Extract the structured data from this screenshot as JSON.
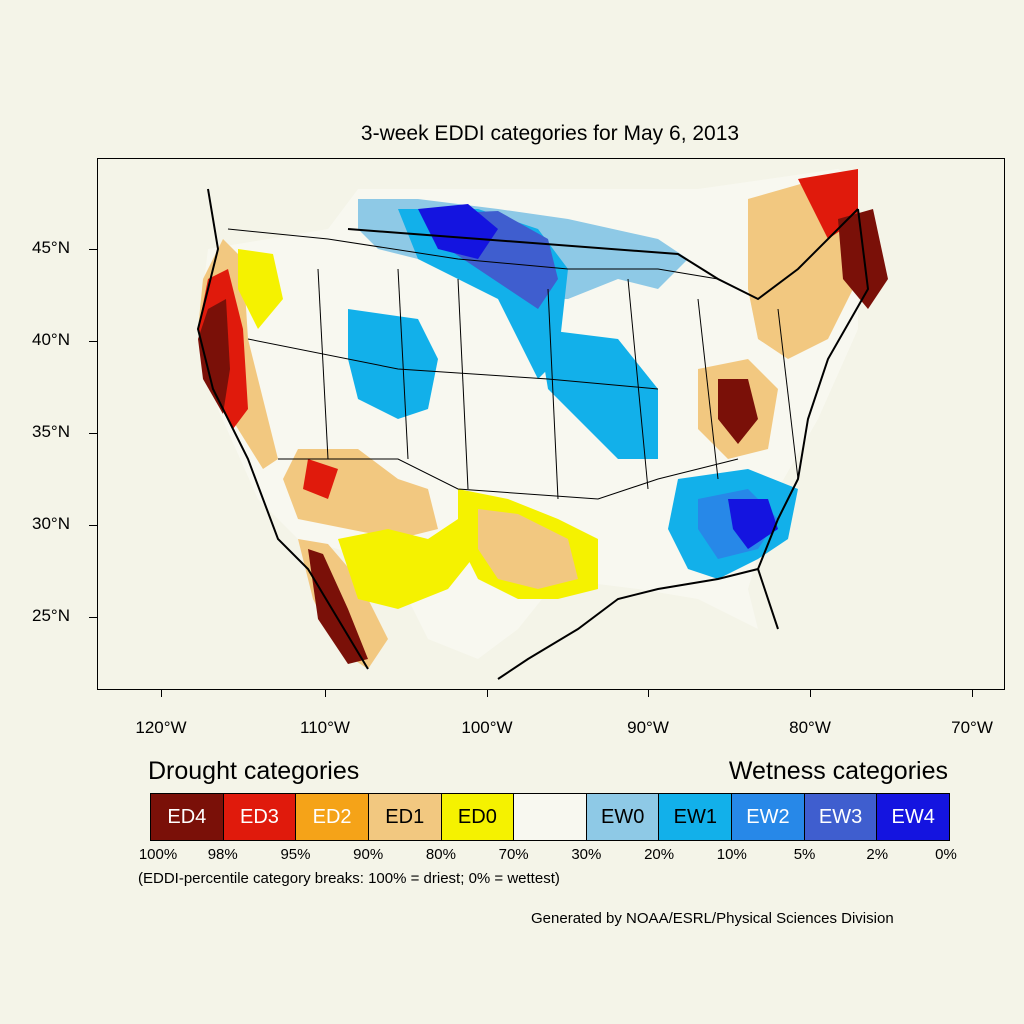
{
  "title": "3-week EDDI categories for May 6, 2013",
  "axes": {
    "y_labels": [
      "45°N",
      "40°N",
      "35°N",
      "30°N",
      "25°N"
    ],
    "x_labels": [
      "120°W",
      "110°W",
      "100°W",
      "90°W",
      "80°W",
      "70°W"
    ]
  },
  "legend": {
    "drought_heading": "Drought categories",
    "wetness_heading": "Wetness categories",
    "categories": [
      {
        "label": "ED4",
        "color": "#7a1008",
        "text_color": "#ffffff"
      },
      {
        "label": "ED3",
        "color": "#e01a0c",
        "text_color": "#ffffff"
      },
      {
        "label": "ED2",
        "color": "#f5a318",
        "text_color": "#ffffff"
      },
      {
        "label": "ED1",
        "color": "#f2c880",
        "text_color": "#000000"
      },
      {
        "label": "ED0",
        "color": "#f5f200",
        "text_color": "#000000"
      },
      {
        "label": "",
        "color": "#f8f8f0",
        "text_color": "#000000"
      },
      {
        "label": "EW0",
        "color": "#8ec9e6",
        "text_color": "#000000"
      },
      {
        "label": "EW1",
        "color": "#12b0ea",
        "text_color": "#000000"
      },
      {
        "label": "EW2",
        "color": "#2788e8",
        "text_color": "#ffffff"
      },
      {
        "label": "EW3",
        "color": "#3f5ecf",
        "text_color": "#ffffff"
      },
      {
        "label": "EW4",
        "color": "#1414e0",
        "text_color": "#ffffff"
      }
    ],
    "breaks": [
      "100%",
      "98%",
      "95%",
      "90%",
      "80%",
      "70%",
      "30%",
      "20%",
      "10%",
      "5%",
      "2%",
      "0%"
    ],
    "note": "(EDDI-percentile category breaks: 100% = driest; 0% = wettest)"
  },
  "credit": "Generated by NOAA/ESRL/Physical Sciences Division"
}
